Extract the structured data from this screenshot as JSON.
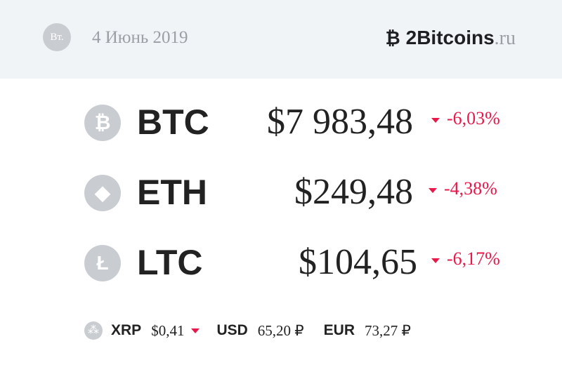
{
  "header": {
    "day": "Вт.",
    "date": "4 Июнь 2019",
    "logo_main": "2Bitcoins",
    "logo_suffix": ".ru"
  },
  "coins": [
    {
      "symbol": "BTC",
      "price": "$7 983,48",
      "change": "-6,03%",
      "icon": "bitcoin-icon",
      "glyph": "₿"
    },
    {
      "symbol": "ETH",
      "price": "$249,48",
      "change": "-4,38%",
      "icon": "ethereum-icon",
      "glyph": "◆"
    },
    {
      "symbol": "LTC",
      "price": "$104,65",
      "change": "-6,17%",
      "icon": "litecoin-icon",
      "glyph": "Ł"
    }
  ],
  "bottom": {
    "xrp_label": "XRP",
    "xrp_value": "$0,41",
    "usd_label": "USD",
    "usd_value": "65,20 ₽",
    "eur_label": "EUR",
    "eur_value": "73,27 ₽"
  },
  "colors": {
    "down": "#e8194a",
    "header_bg": "#f1f4f7"
  }
}
